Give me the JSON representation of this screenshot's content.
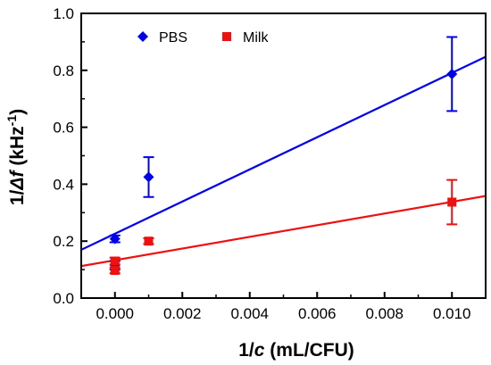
{
  "chart_data": {
    "type": "scatter",
    "xlabel": {
      "prefix": "1/",
      "variable": "c",
      "suffix": " (mL/CFU)"
    },
    "ylabel": {
      "prefix": "1/",
      "variable": "Δf",
      "suffix": " (kHz",
      "sup": "-1",
      "close": ")"
    },
    "xlim": [
      -0.001,
      0.011
    ],
    "ylim": [
      0.0,
      1.0
    ],
    "x_ticks": [
      0.0,
      0.002,
      0.004,
      0.006,
      0.008,
      0.01
    ],
    "x_tick_labels": [
      "0.000",
      "0.002",
      "0.004",
      "0.006",
      "0.008",
      "0.010"
    ],
    "y_ticks": [
      0.0,
      0.2,
      0.4,
      0.6,
      0.8,
      1.0
    ],
    "y_tick_labels": [
      "0.0",
      "0.2",
      "0.4",
      "0.6",
      "0.8",
      "1.0"
    ],
    "legend_position": "top-left",
    "series": [
      {
        "name": "PBS",
        "color": "#0000ee",
        "marker": "diamond",
        "points": [
          {
            "x": 0.0,
            "y": 0.208,
            "err": 0.012
          },
          {
            "x": 0.0,
            "y": 0.115,
            "err": 0.015
          },
          {
            "x": 0.001,
            "y": 0.425,
            "err": 0.07
          },
          {
            "x": 0.01,
            "y": 0.787,
            "err": 0.13
          }
        ],
        "fit": {
          "slope": 56.5,
          "intercept": 0.226
        }
      },
      {
        "name": "Milk",
        "color": "#ee1111",
        "marker": "square",
        "points": [
          {
            "x": 0.0,
            "y": 0.13,
            "err": 0.012
          },
          {
            "x": 0.0,
            "y": 0.097,
            "err": 0.01
          },
          {
            "x": 0.001,
            "y": 0.2,
            "err": 0.01
          },
          {
            "x": 0.01,
            "y": 0.337,
            "err": 0.078
          }
        ],
        "fit": {
          "slope": 20.5,
          "intercept": 0.133
        }
      }
    ]
  }
}
